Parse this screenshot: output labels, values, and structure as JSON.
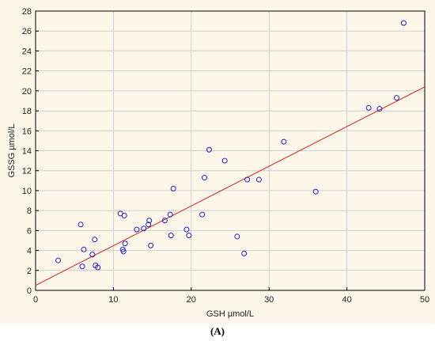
{
  "chart_data": {
    "type": "scatter",
    "xlabel": "GSH µmol/L",
    "ylabel": "GSSG µmol/L",
    "xlim": [
      0,
      50
    ],
    "ylim": [
      0,
      28
    ],
    "x_ticks": [
      "0",
      "10",
      "20",
      "30",
      "40",
      "50"
    ],
    "y_ticks": [
      "0",
      "2",
      "4",
      "6",
      "8",
      "10",
      "12",
      "14",
      "16",
      "18",
      "20",
      "22",
      "24",
      "26",
      "28"
    ],
    "grid": true,
    "marker_color": "#1f1fd0",
    "fit_line_color": "#d42020",
    "fit_line": {
      "x": [
        0,
        50
      ],
      "y": [
        0.5,
        20.4
      ]
    },
    "points": [
      {
        "x": 2.9,
        "y": 3.0
      },
      {
        "x": 5.8,
        "y": 6.6
      },
      {
        "x": 6.0,
        "y": 2.4
      },
      {
        "x": 6.2,
        "y": 4.1
      },
      {
        "x": 7.3,
        "y": 3.6
      },
      {
        "x": 7.6,
        "y": 5.1
      },
      {
        "x": 7.7,
        "y": 2.5
      },
      {
        "x": 8.0,
        "y": 2.3
      },
      {
        "x": 10.9,
        "y": 7.7
      },
      {
        "x": 11.2,
        "y": 4.1
      },
      {
        "x": 11.3,
        "y": 3.9
      },
      {
        "x": 11.4,
        "y": 7.5
      },
      {
        "x": 11.5,
        "y": 4.7
      },
      {
        "x": 13.0,
        "y": 6.1
      },
      {
        "x": 13.9,
        "y": 6.2
      },
      {
        "x": 14.5,
        "y": 6.6
      },
      {
        "x": 14.6,
        "y": 7.0
      },
      {
        "x": 14.8,
        "y": 4.5
      },
      {
        "x": 16.6,
        "y": 7.0
      },
      {
        "x": 17.3,
        "y": 7.6
      },
      {
        "x": 17.4,
        "y": 5.5
      },
      {
        "x": 17.7,
        "y": 10.2
      },
      {
        "x": 19.4,
        "y": 6.1
      },
      {
        "x": 19.7,
        "y": 5.5
      },
      {
        "x": 21.4,
        "y": 7.6
      },
      {
        "x": 21.7,
        "y": 11.3
      },
      {
        "x": 22.3,
        "y": 14.1
      },
      {
        "x": 24.3,
        "y": 13.0
      },
      {
        "x": 25.9,
        "y": 5.4
      },
      {
        "x": 26.8,
        "y": 3.7
      },
      {
        "x": 27.2,
        "y": 11.1
      },
      {
        "x": 28.7,
        "y": 11.1
      },
      {
        "x": 31.9,
        "y": 14.9
      },
      {
        "x": 36.0,
        "y": 9.9
      },
      {
        "x": 42.8,
        "y": 18.3
      },
      {
        "x": 44.2,
        "y": 18.2
      },
      {
        "x": 46.4,
        "y": 19.3
      },
      {
        "x": 47.3,
        "y": 26.8
      }
    ]
  },
  "caption": "(A)"
}
